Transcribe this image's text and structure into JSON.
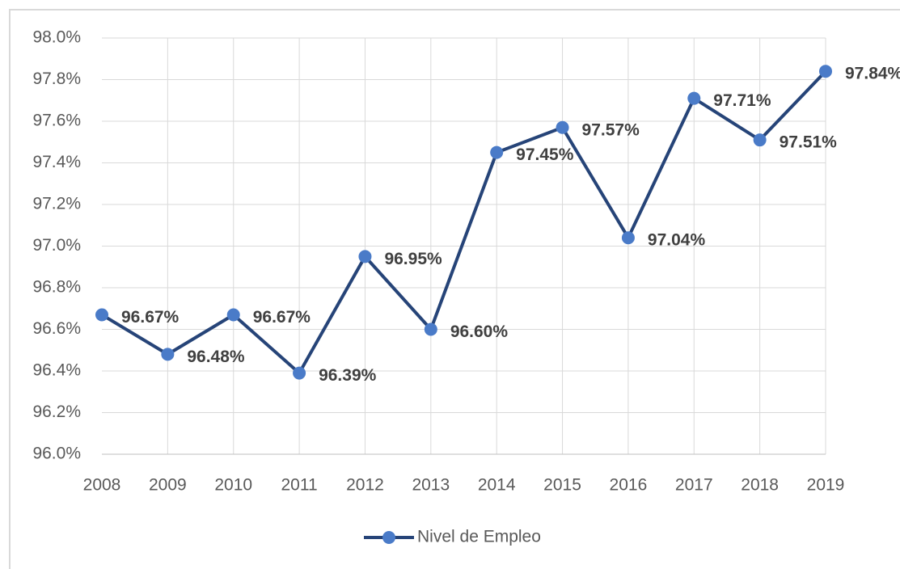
{
  "chart_data": {
    "type": "line",
    "categories": [
      "2008",
      "2009",
      "2010",
      "2011",
      "2012",
      "2013",
      "2014",
      "2015",
      "2016",
      "2017",
      "2018",
      "2019"
    ],
    "series": [
      {
        "name": "Nivel de Empleo",
        "color": "#264478",
        "marker_color": "#4a7bc8",
        "values": [
          96.67,
          96.48,
          96.67,
          96.39,
          96.95,
          96.6,
          97.45,
          97.57,
          97.04,
          97.71,
          97.51,
          97.84
        ],
        "value_labels": [
          "96.67%",
          "96.48%",
          "96.67%",
          "96.39%",
          "96.95%",
          "96.60%",
          "97.45%",
          "97.57%",
          "97.04%",
          "97.71%",
          "97.51%",
          "97.84%"
        ]
      }
    ],
    "ylim": [
      96,
      98
    ],
    "yticks": [
      {
        "value": 96,
        "label": "96.0%"
      },
      {
        "value": 96.2,
        "label": "96.2%"
      },
      {
        "value": 96.4,
        "label": "96.4%"
      },
      {
        "value": 96.6,
        "label": "96.6%"
      },
      {
        "value": 96.8,
        "label": "96.8%"
      },
      {
        "value": 97,
        "label": "97.0%"
      },
      {
        "value": 97.2,
        "label": "97.2%"
      },
      {
        "value": 97.4,
        "label": "97.4%"
      },
      {
        "value": 97.6,
        "label": "97.6%"
      },
      {
        "value": 97.8,
        "label": "97.8%"
      },
      {
        "value": 98,
        "label": "98.0%"
      }
    ],
    "grid": true,
    "legend": "bottom"
  }
}
